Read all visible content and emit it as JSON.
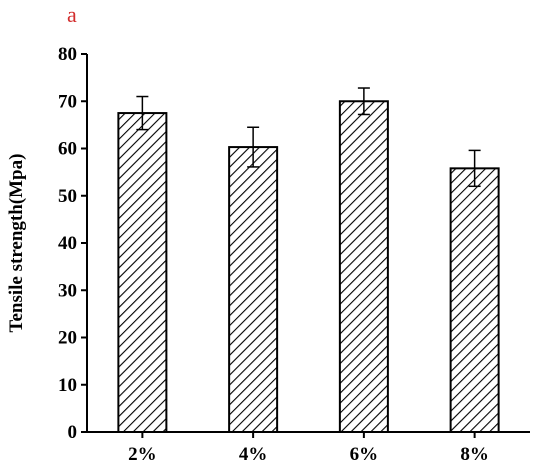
{
  "panel_label": "a",
  "chart_data": {
    "type": "bar",
    "categories": [
      "2%",
      "4%",
      "6%",
      "8%"
    ],
    "values": [
      67.5,
      60.3,
      70.0,
      55.8
    ],
    "errors": [
      3.5,
      4.2,
      2.8,
      3.8
    ],
    "title": "",
    "xlabel": "",
    "ylabel": "Tensile strength(Mpa)",
    "ylim": [
      0,
      80
    ],
    "yticks": [
      0,
      10,
      20,
      30,
      40,
      50,
      60,
      70,
      80
    ],
    "fill_pattern": "diagonal-hatch",
    "colors": {
      "bar_stroke": "#000000",
      "hatch": "#000000",
      "panel_label": "#d22d2d"
    }
  }
}
